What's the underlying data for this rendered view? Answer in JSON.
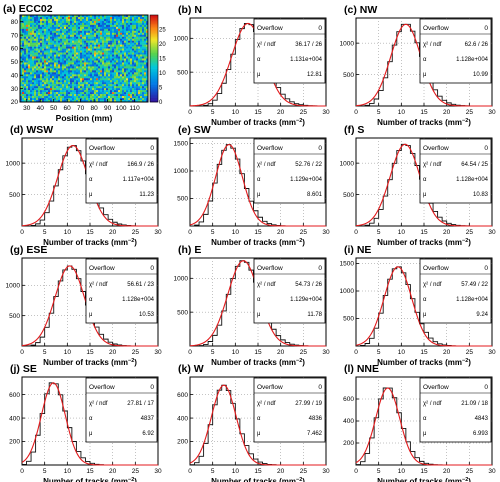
{
  "chart_data": [
    {
      "type": "heatmap",
      "title": "(a) ECC02",
      "xlabel": "Position (mm)",
      "ylabel": "",
      "xlim": [
        25,
        120
      ],
      "ylim": [
        20,
        85
      ],
      "xticks": [
        30,
        40,
        50,
        60,
        70,
        80,
        90,
        100,
        110
      ],
      "yticks": [
        20,
        30,
        40,
        50,
        60,
        70,
        80
      ],
      "zlim": [
        0,
        30
      ],
      "zticks": [
        0,
        5,
        10,
        15,
        20,
        25
      ],
      "colorscale": "rainbow (blue low to red high)"
    },
    {
      "type": "bar",
      "title": "(b) N",
      "xlabel": "Number of tracks (mm",
      "xlabel_sup": "−2",
      "xlim": [
        0,
        30
      ],
      "xticks": [
        0,
        5,
        10,
        15,
        20,
        25,
        30
      ],
      "ylim": [
        0,
        1300
      ],
      "yticks": [
        500,
        1000
      ],
      "stats": {
        "overflow_label": "Overflow",
        "overflow": "0",
        "chi2_label": "χ² / ndf",
        "chi2": "36.17 / 26",
        "alpha_label": "α",
        "alpha": "1.131e+004",
        "mu_label": "μ",
        "mu": "12.81"
      },
      "fit": {
        "mu": 12.81,
        "peak": 1220
      }
    },
    {
      "type": "bar",
      "title": "(c) NW",
      "xlabel": "Number of tracks (mm",
      "xlabel_sup": "−2",
      "xlim": [
        0,
        30
      ],
      "xticks": [
        0,
        5,
        10,
        15,
        20,
        25,
        30
      ],
      "ylim": [
        0,
        1400
      ],
      "yticks": [
        500,
        1000
      ],
      "stats": {
        "overflow_label": "Overflow",
        "overflow": "0",
        "chi2_label": "χ² / ndf",
        "chi2": "62.6 / 26",
        "alpha_label": "α",
        "alpha": "1.128e+004",
        "mu_label": "μ",
        "mu": "10.99"
      },
      "fit": {
        "mu": 10.99,
        "peak": 1300
      }
    },
    {
      "type": "bar",
      "title": "(d) WSW",
      "xlabel": "Number of tracks (mm",
      "xlabel_sup": "−2",
      "xlim": [
        0,
        30
      ],
      "xticks": [
        0,
        5,
        10,
        15,
        20,
        25,
        30
      ],
      "ylim": [
        0,
        1400
      ],
      "yticks": [
        500,
        1000
      ],
      "stats": {
        "overflow_label": "Overflow",
        "overflow": "0",
        "chi2_label": "χ² / ndf",
        "chi2": "166.9 / 26",
        "alpha_label": "α",
        "alpha": "1.117e+004",
        "mu_label": "μ",
        "mu": "11.23"
      },
      "fit": {
        "mu": 11.23,
        "peak": 1280
      }
    },
    {
      "type": "bar",
      "title": "(e) SW",
      "xlabel": "Number of tracks (mm",
      "xlabel_sup": "−2",
      "xlim": [
        0,
        30
      ],
      "xticks": [
        0,
        5,
        10,
        15,
        20,
        25,
        30
      ],
      "ylim": [
        0,
        1600
      ],
      "yticks": [
        500,
        1000,
        1500
      ],
      "stats": {
        "overflow_label": "Overflow",
        "overflow": "0",
        "chi2_label": "χ² / ndf",
        "chi2": "52.76 / 22",
        "alpha_label": "α",
        "alpha": "1.129e+004",
        "mu_label": "μ",
        "mu": "8.601"
      },
      "fit": {
        "mu": 8.601,
        "peak": 1480
      }
    },
    {
      "type": "bar",
      "title": "(f) S",
      "xlabel": "Number of tracks (mm",
      "xlabel_sup": "−2",
      "xlim": [
        0,
        30
      ],
      "xticks": [
        0,
        5,
        10,
        15,
        20,
        25,
        30
      ],
      "ylim": [
        0,
        1400
      ],
      "yticks": [
        500,
        1000
      ],
      "stats": {
        "overflow_label": "Overflow",
        "overflow": "0",
        "chi2_label": "χ² / ndf",
        "chi2": "64.54 / 25",
        "alpha_label": "α",
        "alpha": "1.128e+004",
        "mu_label": "μ",
        "mu": "10.83"
      },
      "fit": {
        "mu": 10.83,
        "peak": 1300
      }
    },
    {
      "type": "bar",
      "title": "(g) ESE",
      "xlabel": "Number of tracks (mm",
      "xlabel_sup": "−2",
      "xlim": [
        0,
        30
      ],
      "xticks": [
        0,
        5,
        10,
        15,
        20,
        25,
        30
      ],
      "ylim": [
        0,
        1450
      ],
      "yticks": [
        500,
        1000
      ],
      "stats": {
        "overflow_label": "Overflow",
        "overflow": "0",
        "chi2_label": "χ² / ndf",
        "chi2": "56.61 / 23",
        "alpha_label": "α",
        "alpha": "1.128e+004",
        "mu_label": "μ",
        "mu": "10.53"
      },
      "fit": {
        "mu": 10.53,
        "peak": 1320
      }
    },
    {
      "type": "bar",
      "title": "(h) E",
      "xlabel": "Number of tracks (mm",
      "xlabel_sup": "−2",
      "xlim": [
        0,
        30
      ],
      "xticks": [
        0,
        5,
        10,
        15,
        20,
        25,
        30
      ],
      "ylim": [
        0,
        1300
      ],
      "yticks": [
        500,
        1000
      ],
      "stats": {
        "overflow_label": "Overflow",
        "overflow": "0",
        "chi2_label": "χ² / ndf",
        "chi2": "54.73 / 26",
        "alpha_label": "α",
        "alpha": "1.129e+004",
        "mu_label": "μ",
        "mu": "11.78"
      },
      "fit": {
        "mu": 11.78,
        "peak": 1260
      }
    },
    {
      "type": "bar",
      "title": "(i) NE",
      "xlabel": "Number of tracks (mm",
      "xlabel_sup": "−2",
      "xlim": [
        0,
        30
      ],
      "xticks": [
        0,
        5,
        10,
        15,
        20,
        25,
        30
      ],
      "ylim": [
        0,
        1600
      ],
      "yticks": [
        500,
        1000,
        1500
      ],
      "stats": {
        "overflow_label": "Overflow",
        "overflow": "0",
        "chi2_label": "χ² / ndf",
        "chi2": "57.49 / 22",
        "alpha_label": "α",
        "alpha": "1.128e+004",
        "mu_label": "μ",
        "mu": "9.24"
      },
      "fit": {
        "mu": 9.24,
        "peak": 1440
      }
    },
    {
      "type": "bar",
      "title": "(j) SE",
      "xlabel": "Number of tracks (mm",
      "xlabel_sup": "−2",
      "xlim": [
        0,
        30
      ],
      "xticks": [
        0,
        5,
        10,
        15,
        20,
        25,
        30
      ],
      "ylim": [
        0,
        750
      ],
      "yticks": [
        200,
        400,
        600
      ],
      "stats": {
        "overflow_label": "Overflow",
        "overflow": "0",
        "chi2_label": "χ² / ndf",
        "chi2": "27.81 / 17",
        "alpha_label": "α",
        "alpha": "4837",
        "mu_label": "μ",
        "mu": "6.92"
      },
      "fit": {
        "mu": 6.92,
        "peak": 700
      }
    },
    {
      "type": "bar",
      "title": "(k) W",
      "xlabel": "Number of tracks (mm",
      "xlabel_sup": "−2",
      "xlim": [
        0,
        30
      ],
      "xticks": [
        0,
        5,
        10,
        15,
        20,
        25,
        30
      ],
      "ylim": [
        0,
        750
      ],
      "yticks": [
        200,
        400,
        600
      ],
      "stats": {
        "overflow_label": "Overflow",
        "overflow": "0",
        "chi2_label": "χ² / ndf",
        "chi2": "27.99 / 19",
        "alpha_label": "α",
        "alpha": "4836",
        "mu_label": "μ",
        "mu": "7.462"
      },
      "fit": {
        "mu": 7.462,
        "peak": 680
      }
    },
    {
      "type": "bar",
      "title": "(l) NNE",
      "xlabel": "Number of tracks (mm",
      "xlabel_sup": "−2",
      "xlim": [
        0,
        30
      ],
      "xticks": [
        0,
        5,
        10,
        15,
        20,
        25,
        30
      ],
      "ylim": [
        0,
        800
      ],
      "yticks": [
        200,
        400,
        600
      ],
      "stats": {
        "overflow_label": "Overflow",
        "overflow": "0",
        "chi2_label": "χ² / ndf",
        "chi2": "21.09 / 18",
        "alpha_label": "α",
        "alpha": "4843",
        "mu_label": "μ",
        "mu": "6.993"
      },
      "fit": {
        "mu": 6.993,
        "peak": 700
      }
    }
  ],
  "colors": {
    "histogram": "#111111",
    "fit": "#e31a1c",
    "grid": "#888888",
    "frame": "#000000"
  }
}
